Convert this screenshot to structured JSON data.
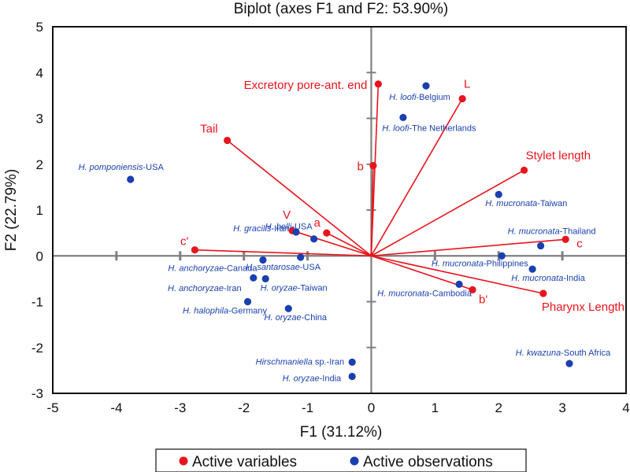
{
  "chart_data": {
    "type": "scatter",
    "subtype": "biplot",
    "title": "Biplot (axes F1 and F2: 53.90%)",
    "xlabel": "F1 (31.12%)",
    "ylabel": "F2 (22.79%)",
    "xlim": [
      -5,
      4
    ],
    "ylim": [
      -3,
      5
    ],
    "x_ticks": [
      -5,
      -4,
      -3,
      -2,
      -1,
      0,
      1,
      2,
      3,
      4
    ],
    "y_ticks": [
      -3,
      -2,
      -1,
      0,
      1,
      2,
      3,
      4,
      5
    ],
    "grid": false,
    "legend": {
      "placement": "bottom",
      "entries": [
        {
          "label": "Active variables",
          "color": "#e8141c"
        },
        {
          "label": "Active observations",
          "color": "#1a3fb0"
        }
      ]
    },
    "colors": {
      "variables": "#e8141c",
      "observations": "#1a3fb0",
      "axes": "#808080"
    },
    "variables": [
      {
        "name": "Excretory pore-ant. end",
        "x": 0.11,
        "y": 3.75,
        "label_pos": "left"
      },
      {
        "name": "L",
        "x": 1.43,
        "y": 3.43,
        "label_pos": "top"
      },
      {
        "name": "b",
        "x": 0.03,
        "y": 1.97,
        "label_pos": "left"
      },
      {
        "name": "Tail",
        "x": -2.26,
        "y": 2.52,
        "label_pos": "top-left"
      },
      {
        "name": "Stylet length",
        "x": 2.4,
        "y": 1.87,
        "label_pos": "top-right"
      },
      {
        "name": "c",
        "x": 3.05,
        "y": 0.36,
        "label_pos": "bottom-right"
      },
      {
        "name": "Pharynx Length",
        "x": 2.7,
        "y": -0.82,
        "label_pos": "bottom-right"
      },
      {
        "name": "b'",
        "x": 1.59,
        "y": -0.74,
        "label_pos": "bottom-right"
      },
      {
        "name": "c'",
        "x": -2.77,
        "y": 0.13,
        "label_pos": "top-left"
      },
      {
        "name": "V",
        "x": -1.24,
        "y": 0.55,
        "label_pos": "top-left"
      },
      {
        "name": "a",
        "x": -0.7,
        "y": 0.5,
        "label_pos": "top-left"
      }
    ],
    "observations": [
      {
        "species": "H. loofi",
        "location": "-Belgium",
        "x": 0.86,
        "y": 3.71,
        "label_pos": "below"
      },
      {
        "species": "H. loofi",
        "location": "-The Netherlands",
        "x": 0.5,
        "y": 3.02,
        "label_pos": "below"
      },
      {
        "species": "H. pomponiensis",
        "location": "-USA",
        "x": -3.78,
        "y": 1.67,
        "label_pos": "above"
      },
      {
        "species": "H. mucronata",
        "location": "-Taiwan",
        "x": 2.0,
        "y": 1.34,
        "label_pos": "below"
      },
      {
        "species": "H. mucronata",
        "location": "-Thailand",
        "x": 2.66,
        "y": 0.22,
        "label_pos": "above"
      },
      {
        "species": "H. mucronata",
        "location": "-Philippines",
        "x": 2.05,
        "y": 0.0,
        "label_pos": "below"
      },
      {
        "species": "H. mucronata",
        "location": "-India",
        "x": 2.53,
        "y": -0.29,
        "label_pos": "below"
      },
      {
        "species": "H. mucronata",
        "location": "-Cambodia",
        "x": 1.38,
        "y": -0.62,
        "label_pos": "below-left"
      },
      {
        "species": "H. gracilis",
        "location": "-Iran",
        "x": -1.18,
        "y": 0.52,
        "label_pos": "left"
      },
      {
        "species": "H. belli",
        "location": "-USA",
        "x": -0.9,
        "y": 0.37,
        "label_pos": "below-left"
      },
      {
        "species": "H. santarosae",
        "location": "-USA",
        "x": -1.11,
        "y": -0.03,
        "label_pos": "below"
      },
      {
        "species": "H. anchoryzae",
        "location": "-Canada",
        "x": -1.7,
        "y": -0.09,
        "label_pos": "below-left"
      },
      {
        "species": "H. anchoryzae",
        "location": "-Iran",
        "x": -1.85,
        "y": -0.48,
        "label_pos": "below-left"
      },
      {
        "species": "H. oryzae",
        "location": "-Taiwan",
        "x": -1.66,
        "y": -0.5,
        "label_pos": "below-right"
      },
      {
        "species": "H. halophila",
        "location": "-Germany",
        "x": -1.94,
        "y": -1.0,
        "label_pos": "below"
      },
      {
        "species": "H. oryzae",
        "location": "-China",
        "x": -1.3,
        "y": -1.15,
        "label_pos": "below"
      },
      {
        "species": "Hirschmaniella",
        "location": " sp.-Iran",
        "x": -0.3,
        "y": -2.32,
        "label_pos": "left"
      },
      {
        "species": "H. oryzae",
        "location": "-India",
        "x": -0.3,
        "y": -2.63,
        "label_pos": "left"
      },
      {
        "species": "H. kwazuna",
        "location": "-South Africa",
        "x": 3.11,
        "y": -2.35,
        "label_pos": "above"
      }
    ]
  }
}
